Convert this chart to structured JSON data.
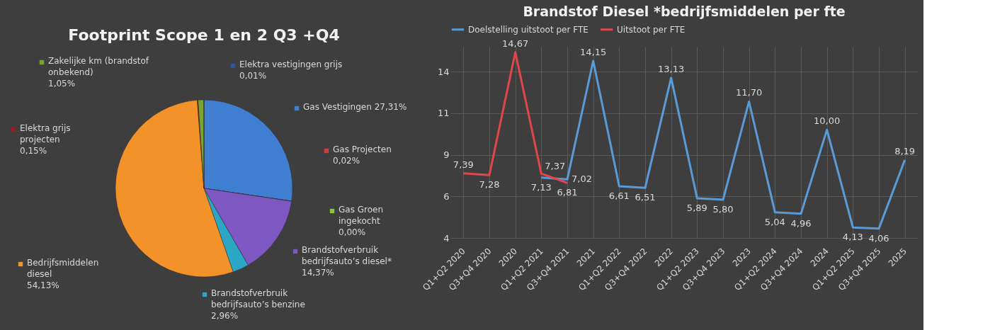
{
  "chart_data": [
    {
      "type": "pie",
      "title": "Footprint Scope 1 en 2 Q3 +Q4",
      "categories": [
        "Gas Vestigingen",
        "Gas Projecten",
        "Gas Groen ingekocht",
        "Brandstofverbruik bedrijfsauto’s diesel*",
        "Brandstofverbruik bedrijfsauto’s benzine",
        "Bedrijfsmiddelen diesel",
        "Elektra grijs projecten",
        "Zakelijke km (brandstof onbekend)",
        "Elektra vestigingen grijs"
      ],
      "values": [
        27.31,
        0.02,
        0.0,
        14.37,
        2.96,
        54.13,
        0.15,
        1.05,
        0.01
      ],
      "value_labels": [
        "27,31%",
        "0,02%",
        "0,00%",
        "14,37%",
        "2,96%",
        "54,13%",
        "0,15%",
        "1,05%",
        "0,01%"
      ],
      "legend": "right",
      "colors": [
        "#3f7ed0",
        "#d43a3a",
        "#8cc63f",
        "#7e57c2",
        "#2ba6c4",
        "#f39229",
        "#9b1c1c",
        "#7aa531",
        "#2e5597"
      ]
    },
    {
      "type": "line",
      "title": "Brandstof Diesel *bedrijfsmiddelen per fte",
      "categories": [
        "Q1+Q2 2020",
        "Q3+Q4 2020",
        "2020",
        "Q1+Q2 2021",
        "Q3+Q4 2021",
        "2021",
        "Q1+Q2 2022",
        "Q3+Q4 2022",
        "2022",
        "Q1+Q2 2023",
        "Q3+Q4 2023",
        "2023",
        "Q1+Q2 2024",
        "Q3+Q4 2024",
        "2024",
        "Q1+Q2 2025",
        "Q3+Q4 2025",
        "2025"
      ],
      "series": [
        {
          "name": "Doelstelling uitstoot per FTE",
          "color": "#5b9bd5",
          "values": [
            null,
            null,
            null,
            7.13,
            7.02,
            14.15,
            6.61,
            6.51,
            13.13,
            5.89,
            5.8,
            11.7,
            5.04,
            4.96,
            10.0,
            4.13,
            4.06,
            8.19
          ],
          "value_labels": [
            null,
            null,
            null,
            "7,13",
            "7,02",
            "14,15",
            "6,61",
            "6,51",
            "13,13",
            "5,89",
            "5,80",
            "11,70",
            "5,04",
            "4,96",
            "10,00",
            "4,13",
            "4,06",
            "8,19"
          ]
        },
        {
          "name": "Uitstoot per FTE",
          "color": "#e0474c",
          "values": [
            7.39,
            7.28,
            14.67,
            7.37,
            6.81,
            null,
            null,
            null,
            null,
            null,
            null,
            null,
            null,
            null,
            null,
            null,
            null,
            null
          ],
          "value_labels": [
            "7,39",
            "7,28",
            "14,67",
            "7,37",
            "6,81",
            null,
            null,
            null,
            null,
            null,
            null,
            null,
            null,
            null,
            null,
            null,
            null,
            null
          ]
        }
      ],
      "ylim": [
        3.5,
        15
      ],
      "yticks": [
        {
          "value": 3.5,
          "label": "4"
        },
        6,
        {
          "value": 8.5,
          "label": "9"
        },
        11,
        {
          "value": 13.5,
          "label": "14"
        }
      ],
      "grid": true,
      "legend": "top"
    }
  ]
}
